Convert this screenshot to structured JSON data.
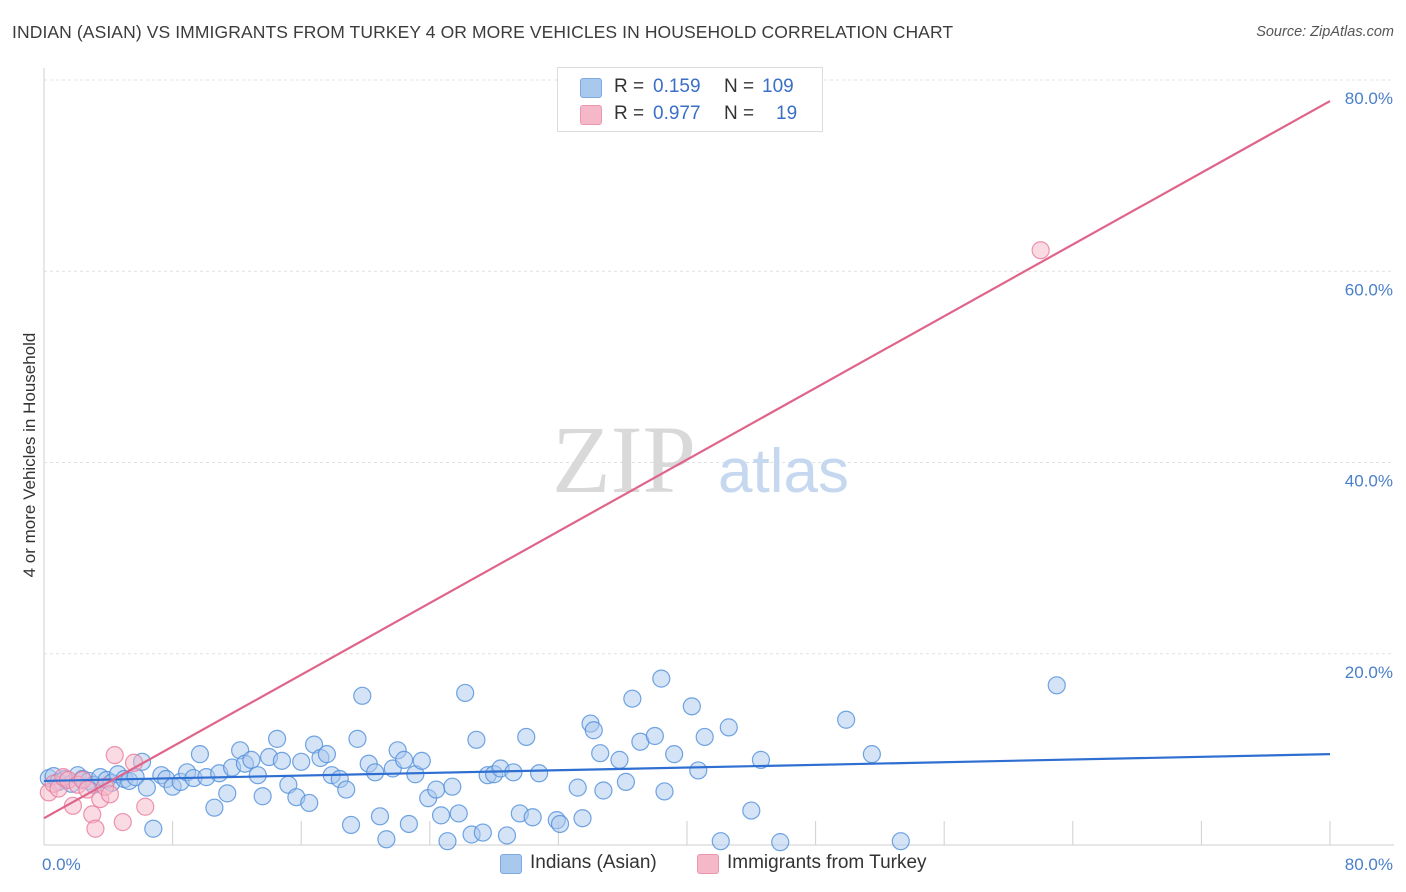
{
  "title": "INDIAN (ASIAN) VS IMMIGRANTS FROM TURKEY 4 OR MORE VEHICLES IN HOUSEHOLD CORRELATION CHART",
  "source": "Source: ZipAtlas.com",
  "watermark": {
    "zip": "ZIP",
    "atlas": "atlas"
  },
  "stats": [
    {
      "r_label": "R =",
      "r_value": "0.159",
      "n_label": "N =",
      "n_value": "109",
      "color": "#a9c8ee"
    },
    {
      "r_label": "R =",
      "r_value": "0.977",
      "n_label": "N =",
      "n_value": "19",
      "color": "#f5b8c9"
    }
  ],
  "legend": [
    {
      "label": "Indians (Asian)",
      "color": "#a9c8ee"
    },
    {
      "label": "Immigrants from Turkey",
      "color": "#f5b8c9"
    }
  ],
  "chart_data": {
    "type": "scatter",
    "title": "INDIAN (ASIAN) VS IMMIGRANTS FROM TURKEY 4 OR MORE VEHICLES IN HOUSEHOLD CORRELATION CHART",
    "xlabel": "",
    "ylabel": "4 or more Vehicles in Household",
    "xlim": [
      0,
      80
    ],
    "ylim": [
      0,
      80
    ],
    "x_tick_labels": [
      "0.0%",
      "80.0%"
    ],
    "y_ticks": [
      20,
      40,
      60,
      80
    ],
    "y_tick_labels": [
      "20.0%",
      "40.0%",
      "60.0%",
      "80.0%"
    ],
    "grid": true,
    "series": [
      {
        "name": "Indians (Asian)",
        "color": "#4f8fdb",
        "fill": "#a9c8ee",
        "trend": {
          "x0": 0,
          "y0": 6.7,
          "x1": 80,
          "y1": 9.5,
          "color": "#2e6fd1"
        },
        "points": [
          [
            0.3,
            7.0
          ],
          [
            0.6,
            7.2
          ],
          [
            0.9,
            6.6
          ],
          [
            1.3,
            6.9
          ],
          [
            1.7,
            6.4
          ],
          [
            2.1,
            7.3
          ],
          [
            2.4,
            6.9
          ],
          [
            2.8,
            6.7
          ],
          [
            3.1,
            6.3
          ],
          [
            3.5,
            7.1
          ],
          [
            3.9,
            6.8
          ],
          [
            4.2,
            6.5
          ],
          [
            4.6,
            7.4
          ],
          [
            5.0,
            6.9
          ],
          [
            5.3,
            6.7
          ],
          [
            5.7,
            7.1
          ],
          [
            6.1,
            8.7
          ],
          [
            6.4,
            6.0
          ],
          [
            6.8,
            1.7
          ],
          [
            7.3,
            7.3
          ],
          [
            7.6,
            6.9
          ],
          [
            8.0,
            6.1
          ],
          [
            8.5,
            6.6
          ],
          [
            8.9,
            7.6
          ],
          [
            9.3,
            7.0
          ],
          [
            9.7,
            9.5
          ],
          [
            10.1,
            7.1
          ],
          [
            10.6,
            3.9
          ],
          [
            10.9,
            7.5
          ],
          [
            11.4,
            5.4
          ],
          [
            11.7,
            8.1
          ],
          [
            12.2,
            9.9
          ],
          [
            12.5,
            8.5
          ],
          [
            12.9,
            8.9
          ],
          [
            13.3,
            7.3
          ],
          [
            13.6,
            5.1
          ],
          [
            14.0,
            9.2
          ],
          [
            14.5,
            11.1
          ],
          [
            14.8,
            8.8
          ],
          [
            15.2,
            6.3
          ],
          [
            15.7,
            5.0
          ],
          [
            16.0,
            8.7
          ],
          [
            16.5,
            4.4
          ],
          [
            16.8,
            10.5
          ],
          [
            17.2,
            9.1
          ],
          [
            17.6,
            9.5
          ],
          [
            17.9,
            7.3
          ],
          [
            18.4,
            6.9
          ],
          [
            18.8,
            5.8
          ],
          [
            19.1,
            2.1
          ],
          [
            19.5,
            11.1
          ],
          [
            19.8,
            15.6
          ],
          [
            20.2,
            8.5
          ],
          [
            20.6,
            7.6
          ],
          [
            20.9,
            3.0
          ],
          [
            21.3,
            0.6
          ],
          [
            21.7,
            8.0
          ],
          [
            22.0,
            9.9
          ],
          [
            22.4,
            8.9
          ],
          [
            22.7,
            2.2
          ],
          [
            23.1,
            7.4
          ],
          [
            23.5,
            8.8
          ],
          [
            23.9,
            4.9
          ],
          [
            24.4,
            5.8
          ],
          [
            24.7,
            3.1
          ],
          [
            25.1,
            0.4
          ],
          [
            25.4,
            6.1
          ],
          [
            25.8,
            3.3
          ],
          [
            26.2,
            15.9
          ],
          [
            26.6,
            1.1
          ],
          [
            26.9,
            11.0
          ],
          [
            27.3,
            1.3
          ],
          [
            27.6,
            7.3
          ],
          [
            28.0,
            7.4
          ],
          [
            28.4,
            8.0
          ],
          [
            28.8,
            1.0
          ],
          [
            29.2,
            7.6
          ],
          [
            29.6,
            3.3
          ],
          [
            30.0,
            11.3
          ],
          [
            30.4,
            2.9
          ],
          [
            30.8,
            7.5
          ],
          [
            31.9,
            2.6
          ],
          [
            32.1,
            2.2
          ],
          [
            33.2,
            6.0
          ],
          [
            33.5,
            2.8
          ],
          [
            34.0,
            12.7
          ],
          [
            34.2,
            12.0
          ],
          [
            34.6,
            9.6
          ],
          [
            34.8,
            5.7
          ],
          [
            35.8,
            8.9
          ],
          [
            36.2,
            6.6
          ],
          [
            36.6,
            15.3
          ],
          [
            37.1,
            10.8
          ],
          [
            38.0,
            11.4
          ],
          [
            38.4,
            17.4
          ],
          [
            38.6,
            5.6
          ],
          [
            39.2,
            9.5
          ],
          [
            40.3,
            14.5
          ],
          [
            40.7,
            7.8
          ],
          [
            41.1,
            11.3
          ],
          [
            42.1,
            0.4
          ],
          [
            42.6,
            12.3
          ],
          [
            44.0,
            3.6
          ],
          [
            44.6,
            8.9
          ],
          [
            45.8,
            0.3
          ],
          [
            49.9,
            13.1
          ],
          [
            51.5,
            9.5
          ],
          [
            53.3,
            0.4
          ],
          [
            63.0,
            16.7
          ]
        ]
      },
      {
        "name": "Immigrants from Turkey",
        "color": "#e87a9b",
        "fill": "#f5b8c9",
        "trend": {
          "x0": 0,
          "y0": 2.8,
          "x1": 80,
          "y1": 77.8,
          "color": "#e0648a"
        },
        "points": [
          [
            0.3,
            5.5
          ],
          [
            0.6,
            6.4
          ],
          [
            0.9,
            5.9
          ],
          [
            1.2,
            7.1
          ],
          [
            1.5,
            6.8
          ],
          [
            1.8,
            4.1
          ],
          [
            2.1,
            6.3
          ],
          [
            2.4,
            6.8
          ],
          [
            2.7,
            5.8
          ],
          [
            3.0,
            3.2
          ],
          [
            3.2,
            1.7
          ],
          [
            3.5,
            4.8
          ],
          [
            3.8,
            6.1
          ],
          [
            4.1,
            5.3
          ],
          [
            4.4,
            9.4
          ],
          [
            4.9,
            2.4
          ],
          [
            5.6,
            8.6
          ],
          [
            6.3,
            4.0
          ],
          [
            62.0,
            62.2
          ]
        ]
      }
    ]
  }
}
